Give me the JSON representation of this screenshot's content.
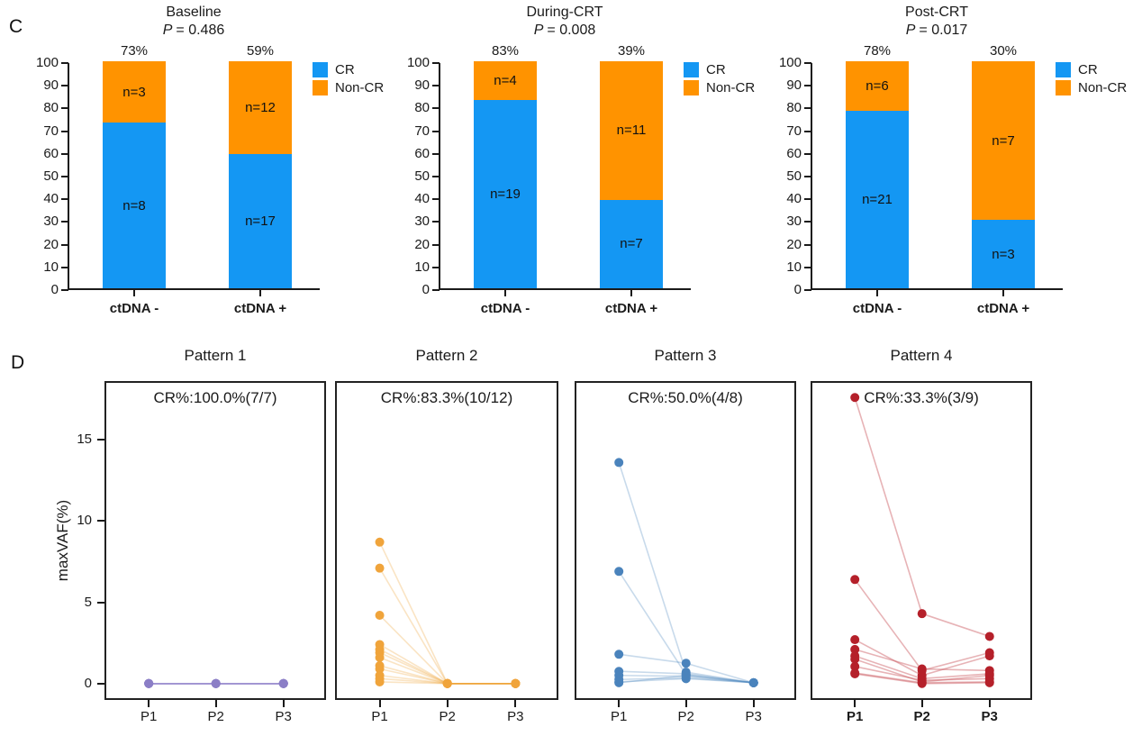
{
  "figure": {
    "panel_c_label": "C",
    "panel_d_label": "D"
  },
  "colors": {
    "cr": "#1497F3",
    "noncr": "#FF9300",
    "axis": "#1a1a1a"
  },
  "chart_data": [
    {
      "type": "bar",
      "panel": "C",
      "title": "Baseline",
      "p_label": "P",
      "p_value": "= 0.486",
      "categories": [
        "ctDNA -",
        "ctDNA +"
      ],
      "bar_top_labels": [
        "73%",
        "59%"
      ],
      "series": [
        {
          "name": "CR",
          "values": [
            73,
            59
          ],
          "counts": [
            "n=8",
            "n=17"
          ],
          "color": "#1497F3"
        },
        {
          "name": "Non-CR",
          "values": [
            27,
            41
          ],
          "counts": [
            "n=3",
            "n=12"
          ],
          "color": "#FF9300"
        }
      ],
      "ylim": [
        0,
        100
      ],
      "y_ticks": [
        0,
        10,
        20,
        30,
        40,
        50,
        60,
        70,
        80,
        90,
        100
      ],
      "legend": [
        "CR",
        "Non-CR"
      ],
      "legend_position": "right",
      "grid": false
    },
    {
      "type": "bar",
      "panel": "C",
      "title": "During-CRT",
      "p_label": "P",
      "p_value": "= 0.008",
      "categories": [
        "ctDNA -",
        "ctDNA +"
      ],
      "bar_top_labels": [
        "83%",
        "39%"
      ],
      "series": [
        {
          "name": "CR",
          "values": [
            83,
            39
          ],
          "counts": [
            "n=19",
            "n=7"
          ],
          "color": "#1497F3"
        },
        {
          "name": "Non-CR",
          "values": [
            17,
            61
          ],
          "counts": [
            "n=4",
            "n=11"
          ],
          "color": "#FF9300"
        }
      ],
      "ylim": [
        0,
        100
      ],
      "y_ticks": [
        0,
        10,
        20,
        30,
        40,
        50,
        60,
        70,
        80,
        90,
        100
      ],
      "legend": [
        "CR",
        "Non-CR"
      ],
      "legend_position": "right",
      "grid": false
    },
    {
      "type": "bar",
      "panel": "C",
      "title": "Post-CRT",
      "p_label": "P",
      "p_value": "= 0.017",
      "categories": [
        "ctDNA -",
        "ctDNA +"
      ],
      "bar_top_labels": [
        "78%",
        "30%"
      ],
      "series": [
        {
          "name": "CR",
          "values": [
            78,
            30
          ],
          "counts": [
            "n=21",
            "n=3"
          ],
          "color": "#1497F3"
        },
        {
          "name": "Non-CR",
          "values": [
            22,
            70
          ],
          "counts": [
            "n=6",
            "n=7"
          ],
          "color": "#FF9300"
        }
      ],
      "ylim": [
        0,
        100
      ],
      "y_ticks": [
        0,
        10,
        20,
        30,
        40,
        50,
        60,
        70,
        80,
        90,
        100
      ],
      "legend": [
        "CR",
        "Non-CR"
      ],
      "legend_position": "right",
      "grid": false
    },
    {
      "type": "line",
      "panel": "D",
      "title": "Pattern 1",
      "annotation": "CR%:100.0%(7/7)",
      "x": [
        "P1",
        "P2",
        "P3"
      ],
      "ylabel": "maxVAF(%)",
      "ylim": [
        -0.9,
        18.5
      ],
      "y_ticks": [
        0,
        5,
        10,
        15
      ],
      "dot_color": "#8B7EC6",
      "line_color": "#A094D2",
      "line_opacity": 0.95,
      "x_labels_bold": false,
      "grid": false,
      "series": [
        [
          0,
          0,
          0
        ],
        [
          0,
          0,
          0
        ],
        [
          0,
          0,
          0
        ],
        [
          0,
          0,
          0
        ],
        [
          0,
          0,
          0
        ],
        [
          0,
          0,
          0
        ],
        [
          0,
          0,
          0
        ]
      ]
    },
    {
      "type": "line",
      "panel": "D",
      "title": "Pattern 2",
      "annotation": "CR%:83.3%(10/12)",
      "x": [
        "P1",
        "P2",
        "P3"
      ],
      "ylim": [
        -0.9,
        18.5
      ],
      "y_ticks": [
        0,
        5,
        10,
        15
      ],
      "dot_color": "#F0A43B",
      "line_color": "#F0A43B",
      "line_opacity": 0.3,
      "x_labels_bold": false,
      "grid": false,
      "series": [
        [
          8.7,
          0,
          0
        ],
        [
          7.1,
          0,
          0
        ],
        [
          4.2,
          0,
          0
        ],
        [
          2.4,
          0,
          0
        ],
        [
          2.1,
          0,
          0
        ],
        [
          1.9,
          0,
          0
        ],
        [
          1.6,
          0,
          0
        ],
        [
          1.1,
          0,
          0
        ],
        [
          0.9,
          0,
          0
        ],
        [
          0.5,
          0,
          0
        ],
        [
          0.3,
          0,
          0
        ],
        [
          0.1,
          0,
          0
        ]
      ]
    },
    {
      "type": "line",
      "panel": "D",
      "title": "Pattern 3",
      "annotation": "CR%:50.0%(4/8)",
      "x": [
        "P1",
        "P2",
        "P3"
      ],
      "ylim": [
        -0.9,
        18.5
      ],
      "y_ticks": [
        0,
        5,
        10,
        15
      ],
      "dot_color": "#4A83BC",
      "line_color": "#4A83BC",
      "line_opacity": 0.3,
      "x_labels_bold": false,
      "grid": false,
      "series": [
        [
          13.6,
          0.7,
          0.05
        ],
        [
          6.9,
          0.55,
          0.05
        ],
        [
          1.8,
          1.25,
          0.05
        ],
        [
          0.75,
          0.6,
          0.05
        ],
        [
          0.5,
          0.45,
          0.05
        ],
        [
          0.25,
          0.35,
          0.05
        ],
        [
          0.1,
          0.3,
          0.05
        ],
        [
          0.05,
          0.5,
          0.05
        ]
      ]
    },
    {
      "type": "line",
      "panel": "D",
      "title": "Pattern 4",
      "annotation": "CR%:33.3%(3/9)",
      "x": [
        "P1",
        "P2",
        "P3"
      ],
      "ylim": [
        -0.9,
        18.5
      ],
      "y_ticks": [
        0,
        5,
        10,
        15
      ],
      "dot_color": "#B5202A",
      "line_color": "#C9565E",
      "line_opacity": 0.45,
      "x_labels_bold": true,
      "grid": false,
      "series": [
        [
          17.6,
          4.3,
          2.9
        ],
        [
          6.4,
          0.8,
          1.9
        ],
        [
          2.7,
          0.5,
          1.7
        ],
        [
          2.1,
          0.9,
          0.8
        ],
        [
          1.7,
          0.3,
          0.6
        ],
        [
          1.5,
          0.1,
          0.5
        ],
        [
          1.05,
          0.2,
          0.3
        ],
        [
          0.65,
          0.05,
          0.1
        ],
        [
          0.6,
          0,
          0.05
        ]
      ]
    }
  ]
}
